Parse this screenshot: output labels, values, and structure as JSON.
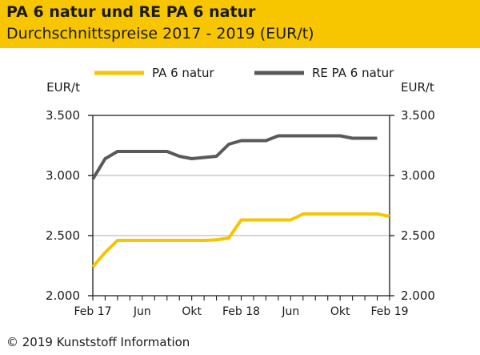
{
  "header": {
    "title": "PA 6 natur und RE PA 6 natur",
    "subtitle": "Durchschnittspreise 2017 - 2019 (EUR/t)"
  },
  "footer": {
    "copyright": "© 2019 Kunststoff Information"
  },
  "colors": {
    "header_bg": "#f7c600",
    "pa6": "#f5c500",
    "repa6": "#58595b",
    "grid": "#c8c8c8",
    "axis": "#1a1a1a"
  },
  "chart_data": {
    "type": "line",
    "title": "PA 6 natur und RE PA 6 natur",
    "subtitle": "Durchschnittspreise 2017 - 2019 (EUR/t)",
    "ylabel_left": "EUR/t",
    "ylabel_right": "EUR/t",
    "ylim": [
      2000,
      3500
    ],
    "yticks": [
      2000,
      2500,
      3000,
      3500
    ],
    "ytick_labels": [
      "2.000",
      "2.500",
      "3.000",
      "3.500"
    ],
    "xlim": [
      0,
      24
    ],
    "xticks": [
      0,
      4,
      8,
      12,
      16,
      20,
      24
    ],
    "xtick_labels": [
      "Feb 17",
      "Jun",
      "Okt",
      "Feb 18",
      "Jun",
      "Okt",
      "Feb 19"
    ],
    "grid": true,
    "legend_position": "top",
    "series": [
      {
        "name": "PA 6 natur",
        "color": "#f5c500",
        "x": [
          0,
          1,
          2,
          3,
          4,
          5,
          6,
          7,
          8,
          9,
          10,
          11,
          12,
          13,
          14,
          15,
          16,
          17,
          18,
          19,
          20,
          21,
          22,
          23,
          24
        ],
        "values": [
          2240,
          2360,
          2460,
          2460,
          2460,
          2460,
          2460,
          2460,
          2460,
          2460,
          2465,
          2480,
          2630,
          2630,
          2630,
          2630,
          2630,
          2680,
          2680,
          2680,
          2680,
          2680,
          2680,
          2680,
          2660
        ]
      },
      {
        "name": "RE PA 6 natur",
        "color": "#58595b",
        "x": [
          0,
          1,
          2,
          3,
          4,
          5,
          6,
          7,
          8,
          9,
          10,
          11,
          12,
          13,
          14,
          15,
          16,
          17,
          18,
          19,
          20,
          21,
          22,
          23
        ],
        "values": [
          2970,
          3140,
          3200,
          3200,
          3200,
          3200,
          3200,
          3160,
          3140,
          3150,
          3160,
          3260,
          3290,
          3290,
          3290,
          3330,
          3330,
          3330,
          3330,
          3330,
          3330,
          3310,
          3310,
          3310
        ]
      }
    ]
  }
}
